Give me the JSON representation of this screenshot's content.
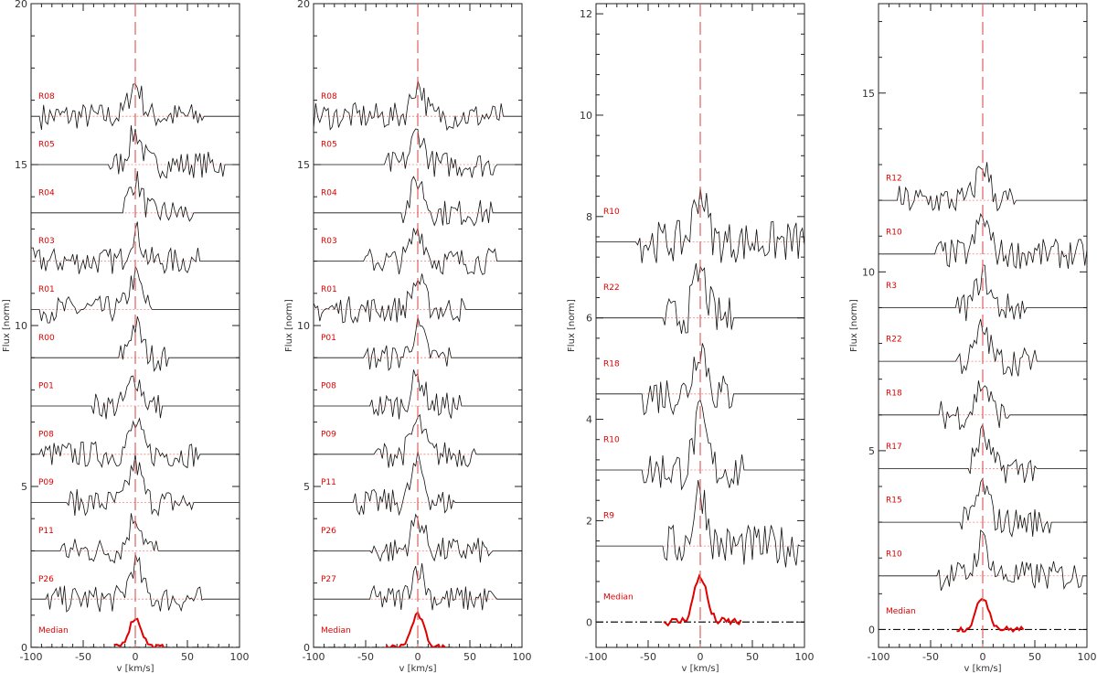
{
  "chart_data": [
    {
      "type": "line",
      "xlabel": "v [km/s]",
      "ylabel": "Flux [norm]",
      "xlim": [
        -100,
        100
      ],
      "ylim": [
        0,
        20
      ],
      "xticks": [
        -100,
        -50,
        0,
        50,
        100
      ],
      "yticks": [
        0,
        5,
        10,
        15,
        20
      ],
      "vline_x": 0,
      "median": {
        "name": "Median",
        "baseline": 0,
        "peak": 0.9,
        "xmin": -20,
        "xmax": 30
      },
      "series": [
        {
          "name": "R08",
          "baseline": 16.5,
          "peak": 1.0,
          "xmin": -90,
          "xmax": 65
        },
        {
          "name": "R05",
          "baseline": 15.0,
          "peak": 1.0,
          "xmin": -25,
          "xmax": 85
        },
        {
          "name": "R04",
          "baseline": 13.5,
          "peak": 1.0,
          "xmin": -10,
          "xmax": 55
        },
        {
          "name": "R03",
          "baseline": 12.0,
          "peak": 0.9,
          "xmin": -100,
          "xmax": 60
        },
        {
          "name": "R01",
          "baseline": 10.5,
          "peak": 1.0,
          "xmin": -90,
          "xmax": 15
        },
        {
          "name": "R00",
          "baseline": 9.0,
          "peak": 1.0,
          "xmin": -15,
          "xmax": 30
        },
        {
          "name": "P01",
          "baseline": 7.5,
          "peak": 0.9,
          "xmin": -40,
          "xmax": 25
        },
        {
          "name": "P08",
          "baseline": 6.0,
          "peak": 0.9,
          "xmin": -90,
          "xmax": 60
        },
        {
          "name": "P09",
          "baseline": 4.5,
          "peak": 1.2,
          "xmin": -65,
          "xmax": 55
        },
        {
          "name": "P11",
          "baseline": 3.0,
          "peak": 1.1,
          "xmin": -70,
          "xmax": 20
        },
        {
          "name": "P26",
          "baseline": 1.5,
          "peak": 1.1,
          "xmin": -85,
          "xmax": 65
        }
      ]
    },
    {
      "type": "line",
      "xlabel": "v [km/s]",
      "ylabel": "Flux [norm]",
      "xlim": [
        -100,
        100
      ],
      "ylim": [
        0,
        20
      ],
      "xticks": [
        -100,
        -50,
        0,
        50,
        100
      ],
      "yticks": [
        0,
        5,
        10,
        15,
        20
      ],
      "vline_x": 0,
      "median": {
        "name": "Median",
        "baseline": 0,
        "peak": 1.0,
        "xmin": -30,
        "xmax": 30
      },
      "series": [
        {
          "name": "R08",
          "baseline": 16.5,
          "peak": 1.0,
          "xmin": -100,
          "xmax": 80
        },
        {
          "name": "R05",
          "baseline": 15.0,
          "peak": 1.0,
          "xmin": -30,
          "xmax": 75
        },
        {
          "name": "R04",
          "baseline": 13.5,
          "peak": 1.0,
          "xmin": -15,
          "xmax": 70
        },
        {
          "name": "R03",
          "baseline": 12.0,
          "peak": 1.0,
          "xmin": -50,
          "xmax": 75
        },
        {
          "name": "R01",
          "baseline": 10.5,
          "peak": 0.9,
          "xmin": -100,
          "xmax": 45
        },
        {
          "name": "P01",
          "baseline": 9.0,
          "peak": 0.9,
          "xmin": -50,
          "xmax": 30
        },
        {
          "name": "P08",
          "baseline": 7.5,
          "peak": 0.9,
          "xmin": -45,
          "xmax": 40
        },
        {
          "name": "P09",
          "baseline": 6.0,
          "peak": 1.0,
          "xmin": -40,
          "xmax": 55
        },
        {
          "name": "P11",
          "baseline": 4.5,
          "peak": 1.2,
          "xmin": -60,
          "xmax": 35
        },
        {
          "name": "P26",
          "baseline": 3.0,
          "peak": 1.0,
          "xmin": -45,
          "xmax": 70
        },
        {
          "name": "P27",
          "baseline": 1.5,
          "peak": 1.0,
          "xmin": -45,
          "xmax": 75
        }
      ]
    },
    {
      "type": "line",
      "xlabel": "v [km/s]",
      "ylabel": "Flux [norm]",
      "xlim": [
        -100,
        100
      ],
      "ylim": [
        -0.5,
        12.2
      ],
      "xticks": [
        -100,
        -50,
        0,
        50,
        100
      ],
      "yticks": [
        0,
        2,
        4,
        6,
        8,
        10,
        12
      ],
      "vline_x": 0,
      "median": {
        "name": "Median",
        "baseline": 0,
        "peak": 0.9,
        "xmin": -35,
        "xmax": 40
      },
      "series": [
        {
          "name": "R10",
          "baseline": 7.5,
          "peak": 1.0,
          "xmin": -60,
          "xmax": 100
        },
        {
          "name": "R22",
          "baseline": 6.0,
          "peak": 0.9,
          "xmin": -35,
          "xmax": 30
        },
        {
          "name": "R18",
          "baseline": 4.5,
          "peak": 1.0,
          "xmin": -55,
          "xmax": 30
        },
        {
          "name": "R10",
          "baseline": 3.0,
          "peak": 1.0,
          "xmin": -55,
          "xmax": 40
        },
        {
          "name": "R9",
          "baseline": 1.5,
          "peak": 1.1,
          "xmin": -35,
          "xmax": 95
        }
      ]
    },
    {
      "type": "line",
      "xlabel": "v [km/s]",
      "ylabel": "Flux [norm]",
      "xlim": [
        -100,
        100
      ],
      "ylim": [
        -0.5,
        17.5
      ],
      "xticks": [
        -100,
        -50,
        0,
        50,
        100
      ],
      "yticks": [
        0,
        5,
        10,
        15
      ],
      "vline_x": 0,
      "median": {
        "name": "Median",
        "baseline": 0,
        "peak": 0.9,
        "xmin": -25,
        "xmax": 40
      },
      "series": [
        {
          "name": "R12",
          "baseline": 12.0,
          "peak": 1.0,
          "xmin": -80,
          "xmax": 30
        },
        {
          "name": "R10",
          "baseline": 10.5,
          "peak": 1.0,
          "xmin": -45,
          "xmax": 100
        },
        {
          "name": "R3",
          "baseline": 9.0,
          "peak": 0.9,
          "xmin": -25,
          "xmax": 40
        },
        {
          "name": "R22",
          "baseline": 7.5,
          "peak": 0.9,
          "xmin": -25,
          "xmax": 50
        },
        {
          "name": "R18",
          "baseline": 6.0,
          "peak": 0.9,
          "xmin": -40,
          "xmax": 25
        },
        {
          "name": "R17",
          "baseline": 4.5,
          "peak": 0.9,
          "xmin": -15,
          "xmax": 50
        },
        {
          "name": "R15",
          "baseline": 3.0,
          "peak": 1.0,
          "xmin": -20,
          "xmax": 65
        },
        {
          "name": "R10",
          "baseline": 1.5,
          "peak": 1.0,
          "xmin": -45,
          "xmax": 95
        }
      ]
    }
  ]
}
